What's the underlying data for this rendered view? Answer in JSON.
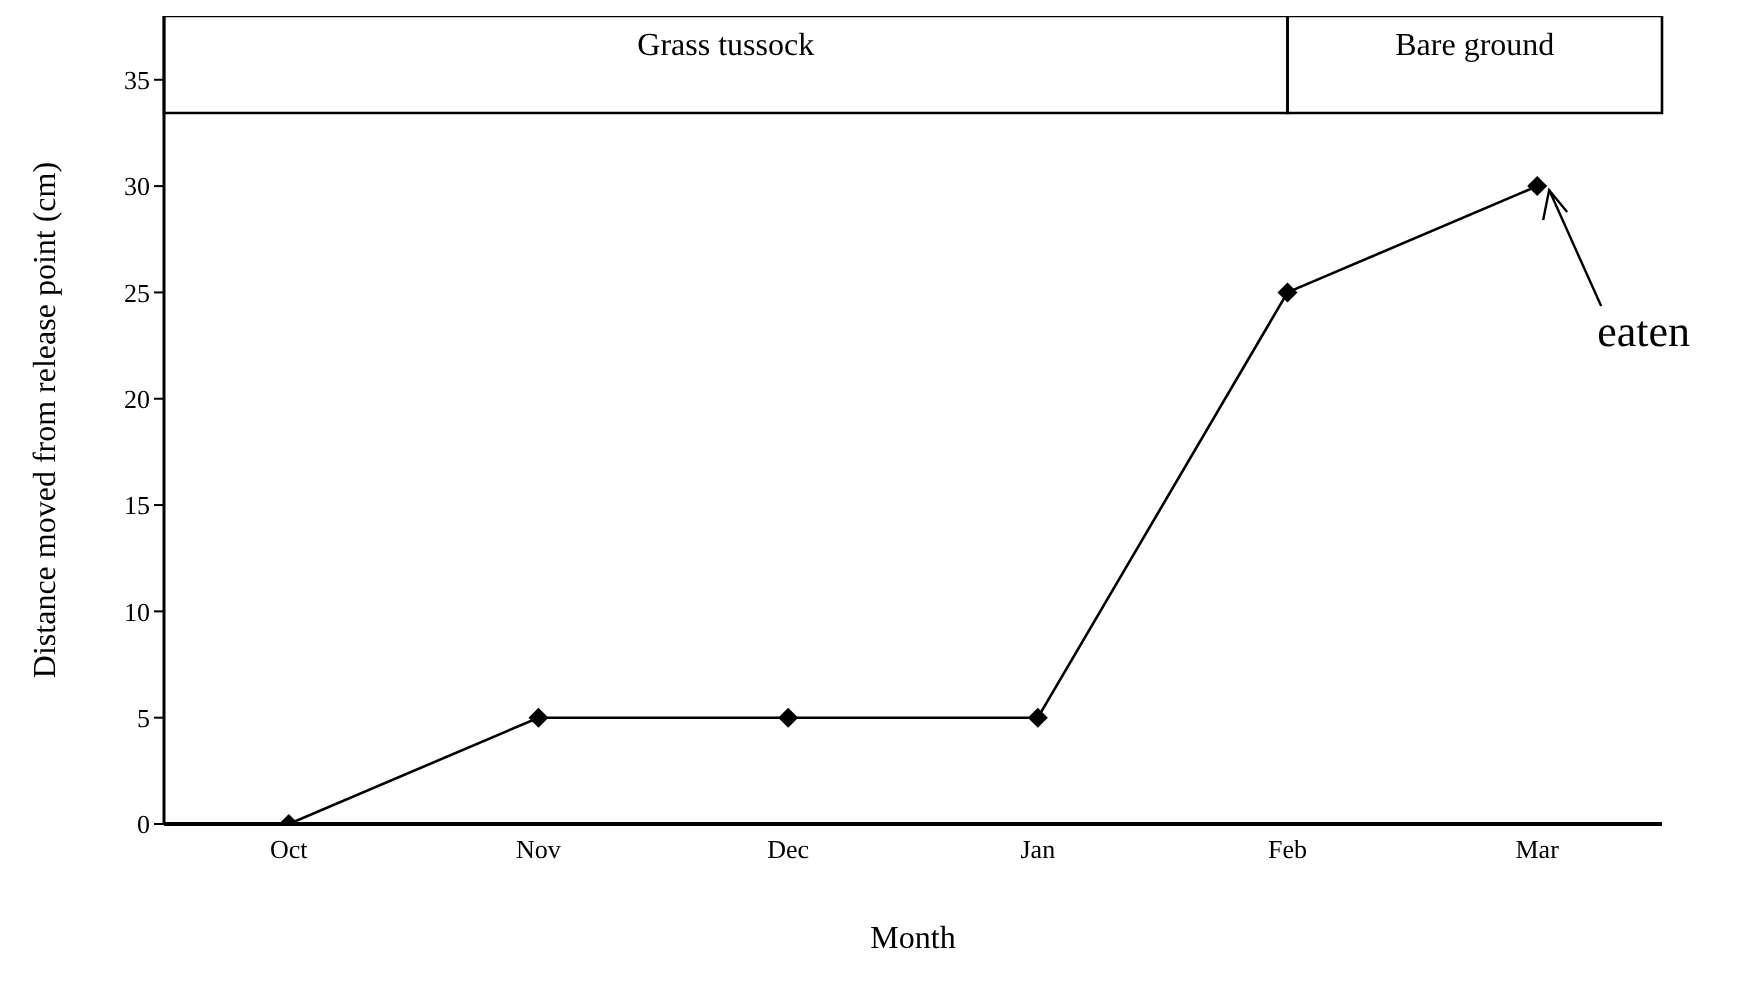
{
  "chart_data": {
    "type": "line",
    "xlabel": "Month",
    "ylabel": "Distance moved from release point (cm)",
    "categories": [
      "Oct",
      "Nov",
      "Dec",
      "Jan",
      "Feb",
      "Mar"
    ],
    "series": [
      {
        "color": "#000000",
        "values": [
          0,
          5,
          5,
          5,
          25,
          30
        ]
      }
    ],
    "ylim": [
      0,
      38
    ],
    "yticks": [
      0,
      5,
      10,
      15,
      20,
      25,
      30,
      35
    ],
    "grid": false,
    "marker": "diamond",
    "line_style": "solid",
    "annotations": [
      "Grass tussock",
      "Bare ground",
      {
        "text": "eaten",
        "x": "Mar",
        "y": 30
      }
    ]
  }
}
